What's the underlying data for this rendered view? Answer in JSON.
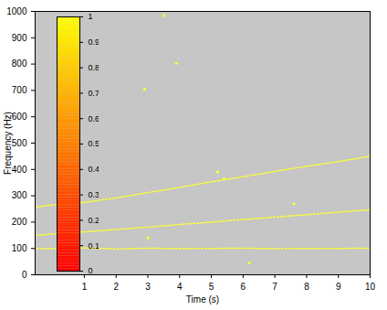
{
  "chart_data": {
    "type": "line",
    "xlabel": "Time (s)",
    "ylabel": "Frequency (Hz)",
    "xlim": [
      -0.55,
      10
    ],
    "xticks": [
      1,
      2,
      3,
      4,
      5,
      6,
      7,
      8,
      9,
      10
    ],
    "ylim": [
      0,
      1000
    ],
    "yticks": [
      0,
      100,
      200,
      300,
      400,
      500,
      600,
      700,
      800,
      900,
      1000
    ],
    "x": [
      -0.5,
      0,
      1,
      2,
      3,
      4,
      5,
      6,
      7,
      8,
      9,
      10
    ],
    "series": [
      {
        "color": "#ffff33",
        "line_style": "dotted",
        "values": [
          258,
          265,
          275,
          292,
          312,
          332,
          353,
          372,
          393,
          412,
          430,
          450
        ]
      },
      {
        "color": "#ffff33",
        "line_style": "dotted",
        "values": [
          150,
          155,
          163,
          172,
          181,
          191,
          200,
          210,
          219,
          228,
          238,
          247
        ]
      },
      {
        "color": "#ffff33",
        "line_style": "dotted",
        "values": [
          100,
          100,
          102,
          98,
          101,
          99,
          100,
          101,
          99,
          100,
          100,
          101
        ]
      },
      {
        "type": "scatter",
        "color": "#ffff33",
        "marker": "dot",
        "x": [
          2.9,
          3.5,
          3.9,
          5.2,
          5.4,
          7.6,
          6.2,
          3.0
        ],
        "values": [
          705,
          985,
          803,
          390,
          365,
          270,
          45,
          140
        ]
      }
    ],
    "colorbar": {
      "range": [
        0,
        1
      ],
      "ticks": [
        0,
        0.1,
        0.2,
        0.3,
        0.4,
        0.5,
        0.6,
        0.7,
        0.8,
        0.9,
        1
      ],
      "colors": [
        "#ff0000",
        "#ffff00"
      ]
    }
  }
}
